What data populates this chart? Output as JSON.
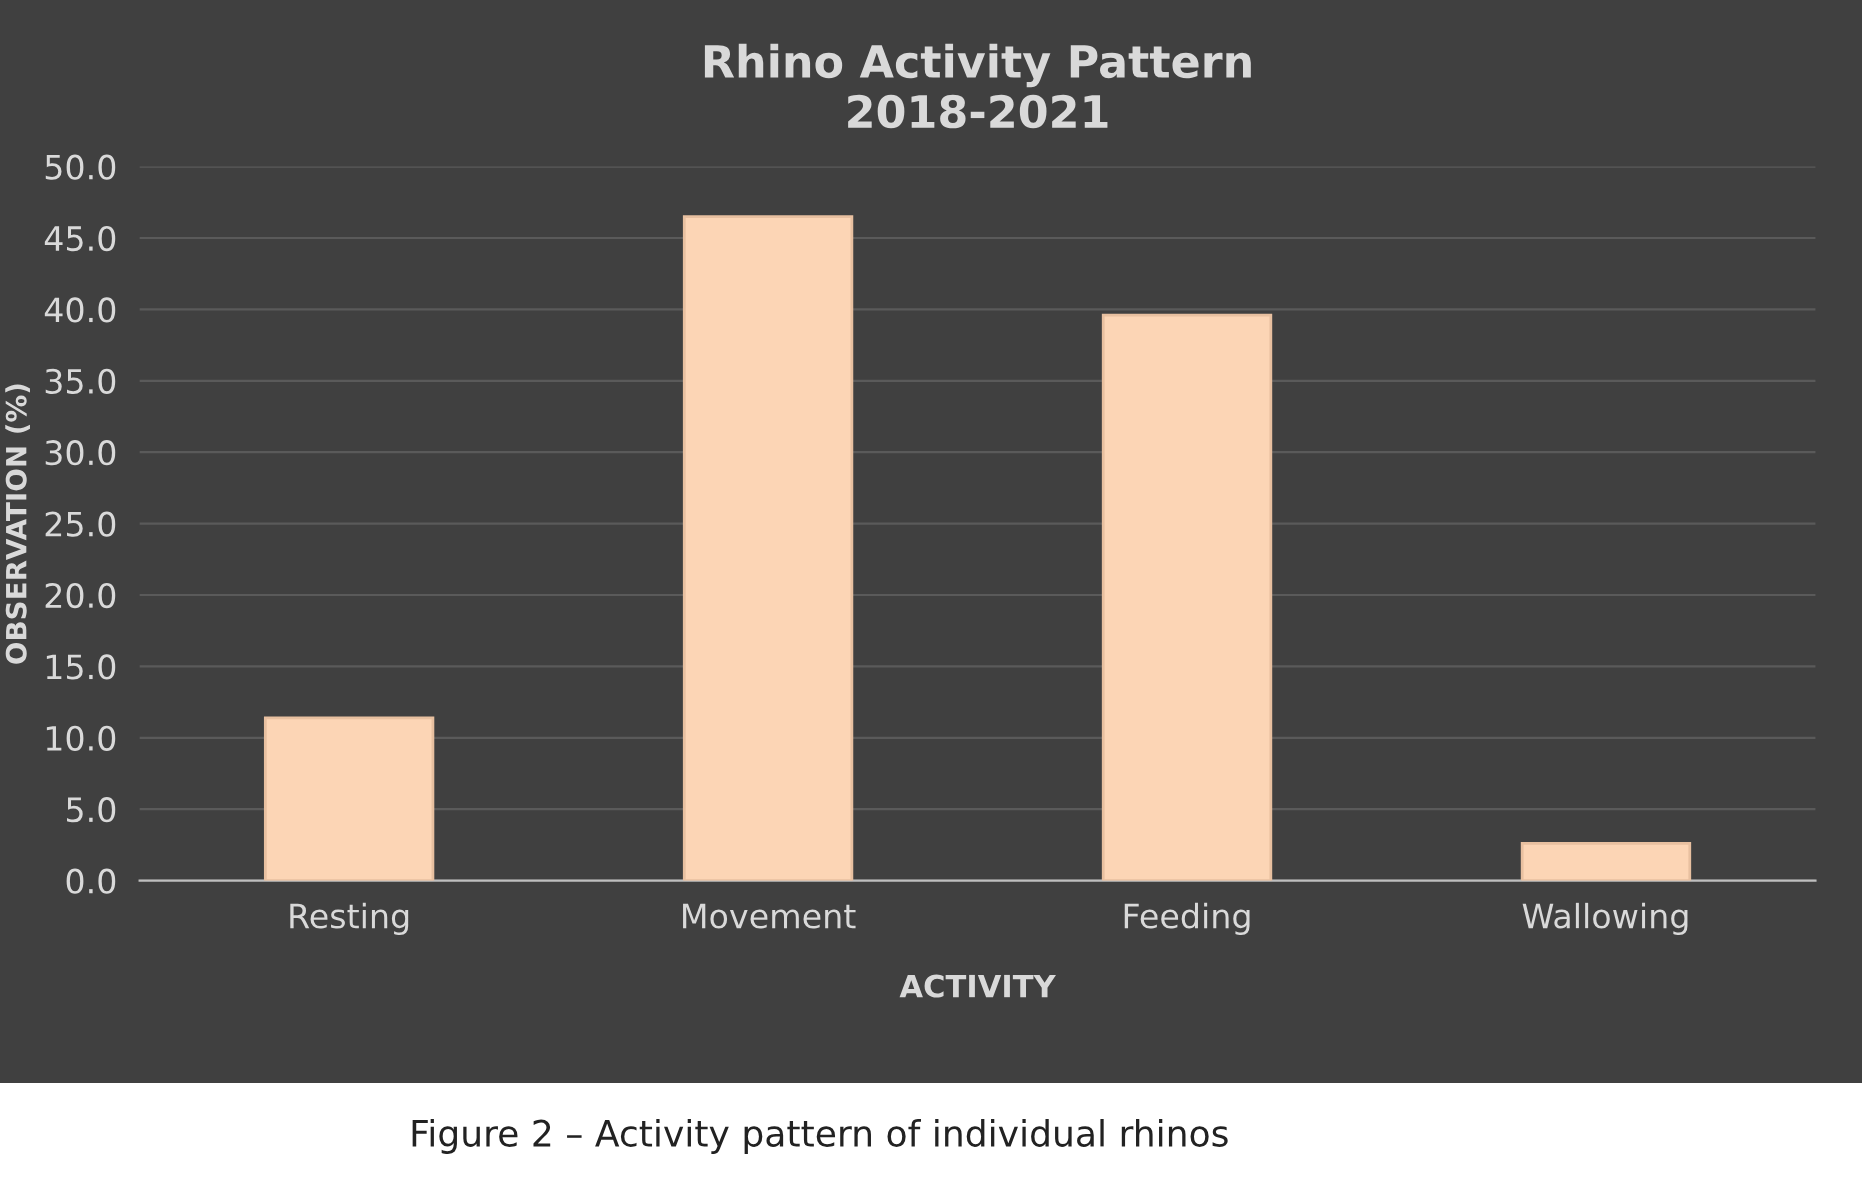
{
  "chart_data": {
    "type": "bar",
    "title": "Rhino Activity Pattern\n2018-2021",
    "xlabel": "ACTIVITY",
    "ylabel": "OBSERVATION (%)",
    "categories": [
      "Resting",
      "Movement",
      "Feeding",
      "Wallowing"
    ],
    "values": [
      11.4,
      46.5,
      39.6,
      2.6
    ],
    "color": "#fcd5b5",
    "ylim": [
      0,
      50
    ],
    "yticks": [
      {
        "value": 0,
        "label": "0.0"
      },
      {
        "value": 5,
        "label": "5.0"
      },
      {
        "value": 10,
        "label": "10.0"
      },
      {
        "value": 15,
        "label": "15.0"
      },
      {
        "value": 20,
        "label": "20.0"
      },
      {
        "value": 25,
        "label": "25.0"
      },
      {
        "value": 30,
        "label": "30.0"
      },
      {
        "value": 35,
        "label": "35.0"
      },
      {
        "value": 40,
        "label": "40.0"
      },
      {
        "value": 45,
        "label": "45.0"
      },
      {
        "value": 50,
        "label": "50.0"
      }
    ],
    "grid": "y",
    "annotations": [
      "Figure 2 – Activity pattern of individual rhinos"
    ]
  }
}
